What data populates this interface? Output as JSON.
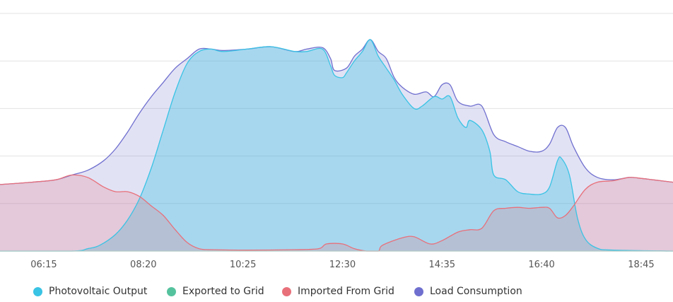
{
  "chart_data": {
    "type": "area",
    "title": "",
    "xlabel": "",
    "ylabel": "",
    "x_range": [
      "05:20",
      "19:25"
    ],
    "x_ticks": [
      "06:15",
      "08:20",
      "10:25",
      "12:30",
      "14:35",
      "16:40",
      "18:45"
    ],
    "y_range": [
      0,
      5
    ],
    "y_gridlines": [
      1,
      2,
      3,
      4,
      5
    ],
    "grid": "horizontal",
    "legend_position": "bottom",
    "series": [
      {
        "name": "Load Consumption",
        "color": "#6f6fcf",
        "points": [
          [
            "05:20",
            1.4
          ],
          [
            "06:00",
            1.45
          ],
          [
            "06:30",
            1.5
          ],
          [
            "06:50",
            1.6
          ],
          [
            "07:10",
            1.7
          ],
          [
            "07:30",
            1.9
          ],
          [
            "07:45",
            2.15
          ],
          [
            "08:00",
            2.5
          ],
          [
            "08:15",
            2.9
          ],
          [
            "08:30",
            3.25
          ],
          [
            "08:45",
            3.55
          ],
          [
            "09:00",
            3.85
          ],
          [
            "09:15",
            4.05
          ],
          [
            "09:30",
            4.25
          ],
          [
            "09:45",
            4.25
          ],
          [
            "10:00",
            4.22
          ],
          [
            "10:30",
            4.25
          ],
          [
            "11:00",
            4.3
          ],
          [
            "11:30",
            4.2
          ],
          [
            "11:45",
            4.25
          ],
          [
            "12:05",
            4.28
          ],
          [
            "12:15",
            4.05
          ],
          [
            "12:20",
            3.8
          ],
          [
            "12:35",
            3.85
          ],
          [
            "12:45",
            4.1
          ],
          [
            "12:55",
            4.25
          ],
          [
            "13:05",
            4.45
          ],
          [
            "13:15",
            4.2
          ],
          [
            "13:25",
            4.05
          ],
          [
            "13:35",
            3.65
          ],
          [
            "13:45",
            3.45
          ],
          [
            "14:00",
            3.3
          ],
          [
            "14:15",
            3.35
          ],
          [
            "14:25",
            3.25
          ],
          [
            "14:35",
            3.5
          ],
          [
            "14:45",
            3.5
          ],
          [
            "14:55",
            3.15
          ],
          [
            "15:10",
            3.05
          ],
          [
            "15:25",
            3.05
          ],
          [
            "15:40",
            2.45
          ],
          [
            "15:55",
            2.3
          ],
          [
            "16:10",
            2.2
          ],
          [
            "16:25",
            2.1
          ],
          [
            "16:40",
            2.1
          ],
          [
            "16:50",
            2.25
          ],
          [
            "17:00",
            2.6
          ],
          [
            "17:10",
            2.6
          ],
          [
            "17:20",
            2.2
          ],
          [
            "17:35",
            1.75
          ],
          [
            "17:50",
            1.55
          ],
          [
            "18:10",
            1.5
          ],
          [
            "18:30",
            1.55
          ],
          [
            "18:45",
            1.53
          ],
          [
            "19:00",
            1.5
          ],
          [
            "19:25",
            1.45
          ]
        ]
      },
      {
        "name": "Photovoltaic Output",
        "color": "#39c3e4",
        "points": [
          [
            "05:20",
            0
          ],
          [
            "06:50",
            0
          ],
          [
            "07:10",
            0.05
          ],
          [
            "07:25",
            0.12
          ],
          [
            "07:45",
            0.35
          ],
          [
            "08:00",
            0.65
          ],
          [
            "08:15",
            1.1
          ],
          [
            "08:30",
            1.75
          ],
          [
            "08:45",
            2.55
          ],
          [
            "09:00",
            3.35
          ],
          [
            "09:15",
            3.95
          ],
          [
            "09:30",
            4.2
          ],
          [
            "09:45",
            4.25
          ],
          [
            "10:00",
            4.2
          ],
          [
            "10:30",
            4.25
          ],
          [
            "11:00",
            4.3
          ],
          [
            "11:30",
            4.2
          ],
          [
            "11:45",
            4.2
          ],
          [
            "12:05",
            4.25
          ],
          [
            "12:15",
            3.9
          ],
          [
            "12:20",
            3.7
          ],
          [
            "12:30",
            3.65
          ],
          [
            "12:35",
            3.75
          ],
          [
            "12:45",
            4.0
          ],
          [
            "12:55",
            4.2
          ],
          [
            "13:05",
            4.45
          ],
          [
            "13:15",
            4.1
          ],
          [
            "13:25",
            3.85
          ],
          [
            "13:35",
            3.6
          ],
          [
            "13:45",
            3.3
          ],
          [
            "14:00",
            3.0
          ],
          [
            "14:10",
            3.05
          ],
          [
            "14:25",
            3.25
          ],
          [
            "14:35",
            3.2
          ],
          [
            "14:45",
            3.25
          ],
          [
            "14:55",
            2.8
          ],
          [
            "15:05",
            2.6
          ],
          [
            "15:10",
            2.75
          ],
          [
            "15:25",
            2.55
          ],
          [
            "15:35",
            2.1
          ],
          [
            "15:40",
            1.6
          ],
          [
            "15:55",
            1.5
          ],
          [
            "16:10",
            1.25
          ],
          [
            "16:25",
            1.2
          ],
          [
            "16:40",
            1.2
          ],
          [
            "16:50",
            1.35
          ],
          [
            "17:00",
            1.9
          ],
          [
            "17:05",
            1.95
          ],
          [
            "17:15",
            1.6
          ],
          [
            "17:25",
            0.7
          ],
          [
            "17:35",
            0.25
          ],
          [
            "17:50",
            0.06
          ],
          [
            "18:10",
            0.02
          ],
          [
            "19:25",
            0
          ]
        ]
      },
      {
        "name": "Imported From Grid",
        "color": "#e8707a",
        "points": [
          [
            "05:20",
            1.4
          ],
          [
            "06:00",
            1.45
          ],
          [
            "06:30",
            1.5
          ],
          [
            "06:50",
            1.6
          ],
          [
            "07:10",
            1.55
          ],
          [
            "07:30",
            1.35
          ],
          [
            "07:45",
            1.25
          ],
          [
            "08:00",
            1.25
          ],
          [
            "08:15",
            1.15
          ],
          [
            "08:30",
            0.95
          ],
          [
            "08:45",
            0.75
          ],
          [
            "09:00",
            0.45
          ],
          [
            "09:15",
            0.18
          ],
          [
            "09:30",
            0.05
          ],
          [
            "09:45",
            0.03
          ],
          [
            "10:30",
            0.02
          ],
          [
            "11:30",
            0.03
          ],
          [
            "12:00",
            0.05
          ],
          [
            "12:10",
            0.15
          ],
          [
            "12:30",
            0.15
          ],
          [
            "12:45",
            0.05
          ],
          [
            "13:00",
            0
          ],
          [
            "13:15",
            0
          ],
          [
            "13:20",
            0.12
          ],
          [
            "13:45",
            0.28
          ],
          [
            "14:00",
            0.3
          ],
          [
            "14:20",
            0.15
          ],
          [
            "14:35",
            0.22
          ],
          [
            "14:55",
            0.4
          ],
          [
            "15:10",
            0.45
          ],
          [
            "15:25",
            0.48
          ],
          [
            "15:40",
            0.85
          ],
          [
            "15:55",
            0.9
          ],
          [
            "16:10",
            0.92
          ],
          [
            "16:25",
            0.9
          ],
          [
            "16:40",
            0.92
          ],
          [
            "16:50",
            0.9
          ],
          [
            "17:00",
            0.7
          ],
          [
            "17:10",
            0.75
          ],
          [
            "17:20",
            0.95
          ],
          [
            "17:35",
            1.3
          ],
          [
            "17:50",
            1.45
          ],
          [
            "18:10",
            1.48
          ],
          [
            "18:30",
            1.55
          ],
          [
            "18:45",
            1.53
          ],
          [
            "19:00",
            1.5
          ],
          [
            "19:25",
            1.45
          ]
        ]
      },
      {
        "name": "Exported to Grid",
        "color": "#55c29e",
        "points": [
          [
            "05:20",
            0
          ],
          [
            "19:25",
            0
          ]
        ]
      }
    ]
  }
}
